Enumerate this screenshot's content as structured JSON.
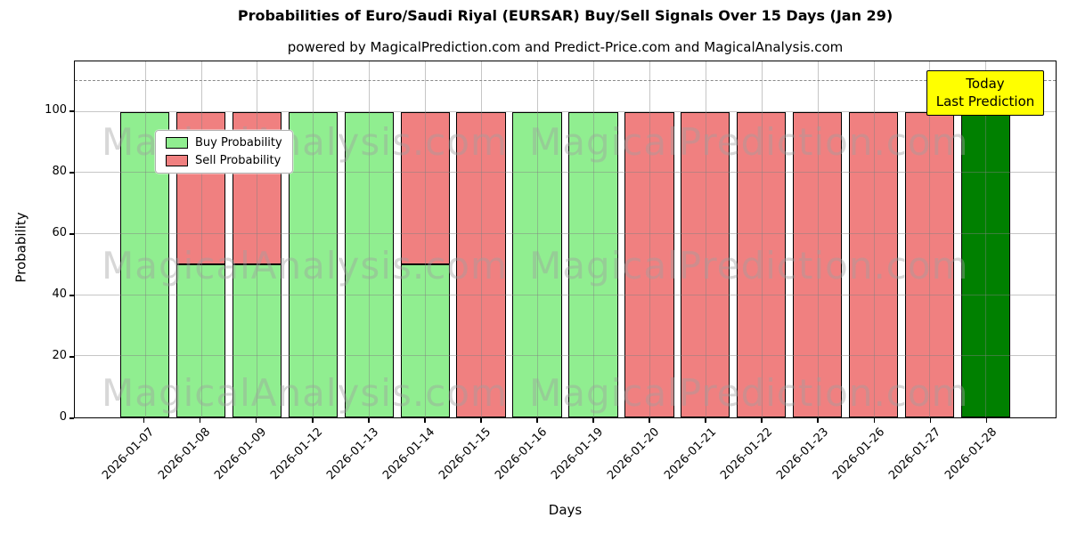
{
  "title": "Probabilities of Euro/Saudi Riyal (EURSAR) Buy/Sell Signals Over 15 Days (Jan 29)",
  "subtitle": "powered by MagicalPrediction.com and Predict-Price.com and MagicalAnalysis.com",
  "legend": {
    "items": [
      {
        "label": "Buy Probability",
        "color": "#90EE90"
      },
      {
        "label": "Sell Probability",
        "color": "#F08080"
      }
    ]
  },
  "today_box": {
    "line1": "Today",
    "line2": "Last Prediction",
    "bg_color": "#FFFF00"
  },
  "watermarks": {
    "left_text": "MagicalAnalysis.com",
    "right_text": "MagicalPrediction.com"
  },
  "axes": {
    "xlabel": "Days",
    "ylabel": "Probability",
    "yticks": [
      "0",
      "20",
      "40",
      "60",
      "80",
      "100"
    ],
    "dashed_line_y": 110
  },
  "chart_data": {
    "type": "bar",
    "stacked": true,
    "title": "Probabilities of Euro/Saudi Riyal (EURSAR) Buy/Sell Signals Over 15 Days (Jan 29)",
    "xlabel": "Days",
    "ylabel": "Probability",
    "ylim": [
      0,
      116.5
    ],
    "grid": true,
    "legend_position": "upper left",
    "categories": [
      "2026-01-07",
      "2026-01-08",
      "2026-01-09",
      "2026-01-12",
      "2026-01-13",
      "2026-01-14",
      "2026-01-15",
      "2026-01-16",
      "2026-01-19",
      "2026-01-20",
      "2026-01-21",
      "2026-01-22",
      "2026-01-23",
      "2026-01-26",
      "2026-01-27",
      "2026-01-28"
    ],
    "series": [
      {
        "name": "Buy Probability",
        "color": "#90EE90",
        "values": [
          100,
          50,
          50,
          100,
          100,
          50,
          0,
          100,
          100,
          0,
          0,
          0,
          0,
          0,
          0,
          100
        ]
      },
      {
        "name": "Sell Probability",
        "color": "#F08080",
        "values": [
          0,
          50,
          50,
          0,
          0,
          50,
          100,
          0,
          0,
          100,
          100,
          100,
          100,
          100,
          100,
          0
        ]
      }
    ],
    "today_bar": {
      "category": "2026-01-28",
      "color": "#008000"
    },
    "bar_edge_color": "#000000",
    "dashed_line_y": 110
  }
}
